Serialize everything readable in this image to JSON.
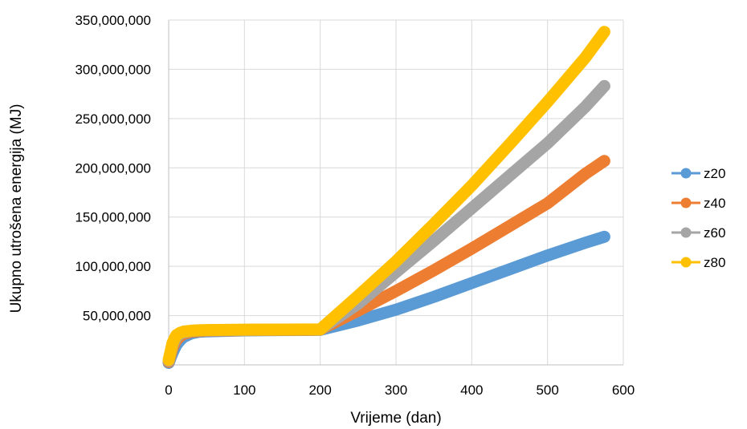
{
  "chart_data": {
    "type": "line",
    "title": "",
    "xlabel": "Vrijeme (dan)",
    "ylabel": "Ukupno utrošena energija (MJ)",
    "xlim": [
      0,
      600
    ],
    "ylim": [
      0,
      350000000
    ],
    "x_ticks": [
      0,
      100,
      200,
      300,
      400,
      500,
      600
    ],
    "y_ticks": [
      50000000,
      100000000,
      150000000,
      200000000,
      250000000,
      300000000,
      350000000
    ],
    "x_tick_labels": [
      "0",
      "100",
      "200",
      "300",
      "400",
      "500",
      "600"
    ],
    "y_tick_labels": [
      "50,000,000",
      "100,000,000",
      "150,000,000",
      "200,000,000",
      "250,000,000",
      "300,000,000",
      "350,000,000"
    ],
    "grid": true,
    "legend_position": "right",
    "series": [
      {
        "name": "z20",
        "color": "#5B9BD5",
        "points": [
          [
            0,
            2000000
          ],
          [
            5,
            12000000
          ],
          [
            10,
            20000000
          ],
          [
            15,
            25000000
          ],
          [
            20,
            28500000
          ],
          [
            30,
            32000000
          ],
          [
            40,
            33500000
          ],
          [
            50,
            34000000
          ],
          [
            100,
            35000000
          ],
          [
            150,
            35300000
          ],
          [
            200,
            35500000
          ],
          [
            250,
            45000000
          ],
          [
            300,
            56000000
          ],
          [
            350,
            69000000
          ],
          [
            400,
            83000000
          ],
          [
            450,
            97000000
          ],
          [
            500,
            111000000
          ],
          [
            550,
            124000000
          ],
          [
            575,
            130000000
          ]
        ]
      },
      {
        "name": "z40",
        "color": "#ED7D31",
        "points": [
          [
            0,
            3000000
          ],
          [
            5,
            17000000
          ],
          [
            10,
            25000000
          ],
          [
            15,
            29000000
          ],
          [
            20,
            31500000
          ],
          [
            30,
            33500000
          ],
          [
            40,
            34300000
          ],
          [
            50,
            34700000
          ],
          [
            100,
            35300000
          ],
          [
            150,
            35500000
          ],
          [
            200,
            35700000
          ],
          [
            250,
            55000000
          ],
          [
            300,
            75000000
          ],
          [
            350,
            96000000
          ],
          [
            400,
            118000000
          ],
          [
            450,
            141000000
          ],
          [
            500,
            164000000
          ],
          [
            550,
            194000000
          ],
          [
            575,
            207000000
          ]
        ]
      },
      {
        "name": "z60",
        "color": "#A5A5A5",
        "points": [
          [
            0,
            4000000
          ],
          [
            5,
            20000000
          ],
          [
            10,
            28000000
          ],
          [
            15,
            31500000
          ],
          [
            20,
            33000000
          ],
          [
            30,
            34300000
          ],
          [
            40,
            34800000
          ],
          [
            50,
            35000000
          ],
          [
            100,
            35500000
          ],
          [
            150,
            35700000
          ],
          [
            200,
            35800000
          ],
          [
            250,
            62000000
          ],
          [
            300,
            94000000
          ],
          [
            350,
            126000000
          ],
          [
            400,
            159000000
          ],
          [
            450,
            192000000
          ],
          [
            500,
            225000000
          ],
          [
            550,
            262000000
          ],
          [
            575,
            283000000
          ]
        ]
      },
      {
        "name": "z80",
        "color": "#FFC000",
        "points": [
          [
            0,
            5000000
          ],
          [
            5,
            22000000
          ],
          [
            10,
            30000000
          ],
          [
            15,
            32500000
          ],
          [
            20,
            33800000
          ],
          [
            30,
            34700000
          ],
          [
            40,
            35100000
          ],
          [
            50,
            35300000
          ],
          [
            100,
            35700000
          ],
          [
            150,
            35800000
          ],
          [
            200,
            35900000
          ],
          [
            250,
            70000000
          ],
          [
            300,
            105000000
          ],
          [
            350,
            143000000
          ],
          [
            400,
            182000000
          ],
          [
            450,
            224000000
          ],
          [
            500,
            267000000
          ],
          [
            550,
            312000000
          ],
          [
            575,
            338000000
          ]
        ]
      }
    ]
  }
}
